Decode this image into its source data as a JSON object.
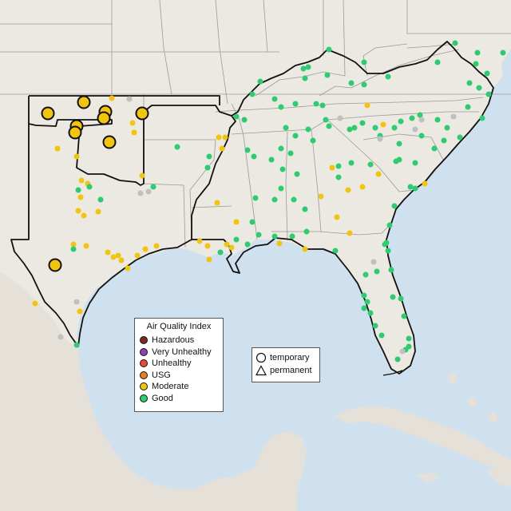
{
  "legend": {
    "title": "Air Quality Index",
    "categories": [
      {
        "label": "Hazardous",
        "color": "#7e2a1f"
      },
      {
        "label": "Very Unhealthy",
        "color": "#8e44ad"
      },
      {
        "label": "Unhealthy",
        "color": "#e74c3c"
      },
      {
        "label": "USG",
        "color": "#e67e22"
      },
      {
        "label": "Moderate",
        "color": "#f1c40f"
      },
      {
        "label": "Good",
        "color": "#2ecc71"
      }
    ],
    "shapes": [
      {
        "label": "temporary",
        "shape": "circle"
      },
      {
        "label": "permanent",
        "shape": "triangle"
      }
    ]
  },
  "colors": {
    "water": "#cfe0ee",
    "land": "#ece8e2",
    "land_south": "#e6e1d8",
    "state_border": "#9a9a9a",
    "highlight_border": "#111111",
    "no_data": "#c0c0c0"
  }
}
